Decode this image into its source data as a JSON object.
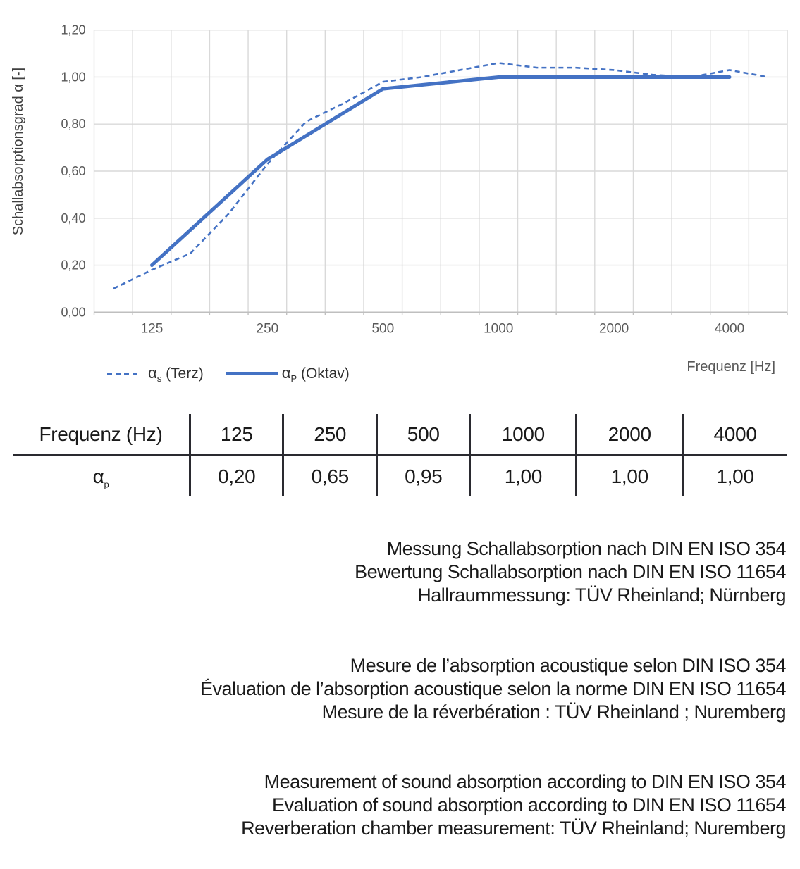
{
  "chart_data": {
    "type": "line",
    "title": "",
    "xlabel": "Frequenz [Hz]",
    "ylabel": "Schallabsorptionsgrad α [-]",
    "x_scale": "logarithmic (third-octave band categories)",
    "categories": [
      100,
      125,
      160,
      200,
      250,
      315,
      400,
      500,
      630,
      800,
      1000,
      1250,
      1600,
      2000,
      2500,
      3150,
      4000,
      5000
    ],
    "x_tick_labels": [
      "125",
      "250",
      "500",
      "1000",
      "2000",
      "4000"
    ],
    "y_tick_labels": [
      "1,20",
      "1,00",
      "0,80",
      "0,60",
      "0,40",
      "0,20",
      "0,00"
    ],
    "ylim": [
      0,
      1.2
    ],
    "grid": true,
    "legend_position": "bottom-left",
    "series": [
      {
        "name": "αs (Terz)",
        "style": "dashed",
        "x": [
          100,
          125,
          160,
          200,
          250,
          315,
          400,
          500,
          630,
          800,
          1000,
          1250,
          1600,
          2000,
          2500,
          3150,
          4000,
          5000
        ],
        "values": [
          0.1,
          0.18,
          0.25,
          0.42,
          0.63,
          0.81,
          0.89,
          0.98,
          1.0,
          1.03,
          1.06,
          1.04,
          1.04,
          1.03,
          1.01,
          1.0,
          1.03,
          1.0
        ]
      },
      {
        "name": "αP (Oktav)",
        "style": "solid",
        "x": [
          125,
          250,
          500,
          1000,
          2000,
          4000
        ],
        "values": [
          0.2,
          0.65,
          0.95,
          1.0,
          1.0,
          1.0
        ]
      }
    ]
  },
  "legend": {
    "items": [
      {
        "symbol": "α",
        "subscript": "s",
        "label": "(Terz)"
      },
      {
        "symbol": "α",
        "subscript": "P",
        "label": "(Oktav)"
      }
    ]
  },
  "table": {
    "row_header": "Frequenz (Hz)",
    "value_row_symbol": "α",
    "value_row_subscript": "p",
    "frequencies": [
      "125",
      "250",
      "500",
      "1000",
      "2000",
      "4000"
    ],
    "values": [
      "0,20",
      "0,65",
      "0,95",
      "1,00",
      "1,00",
      "1,00"
    ]
  },
  "text_blocks": {
    "german": [
      "Messung Schallabsorption nach DIN EN ISO 354",
      "Bewertung Schallabsorption nach DIN EN ISO 11654",
      "Hallraummessung: TÜV Rheinland; Nürnberg"
    ],
    "french": [
      "Mesure de l’absorption acoustique selon DIN ISO 354",
      "Évaluation de l’absorption acoustique selon la norme DIN EN ISO 11654",
      "Mesure de la réverbération : TÜV Rheinland ; Nuremberg"
    ],
    "english": [
      "Measurement of sound absorption according to DIN EN ISO 354",
      "Evaluation of sound absorption according to DIN EN ISO 11654",
      "Reverberation chamber measurement: TÜV Rheinland; Nuremberg"
    ]
  },
  "colors": {
    "series_blue": "#4472C4",
    "gridline": "#D9D9D9",
    "axis_line": "#BFBFBF",
    "axis_text": "#595959",
    "axis_title_text": "#404040",
    "body_text": "#1a1a1a",
    "table_line": "#2a2a30"
  }
}
